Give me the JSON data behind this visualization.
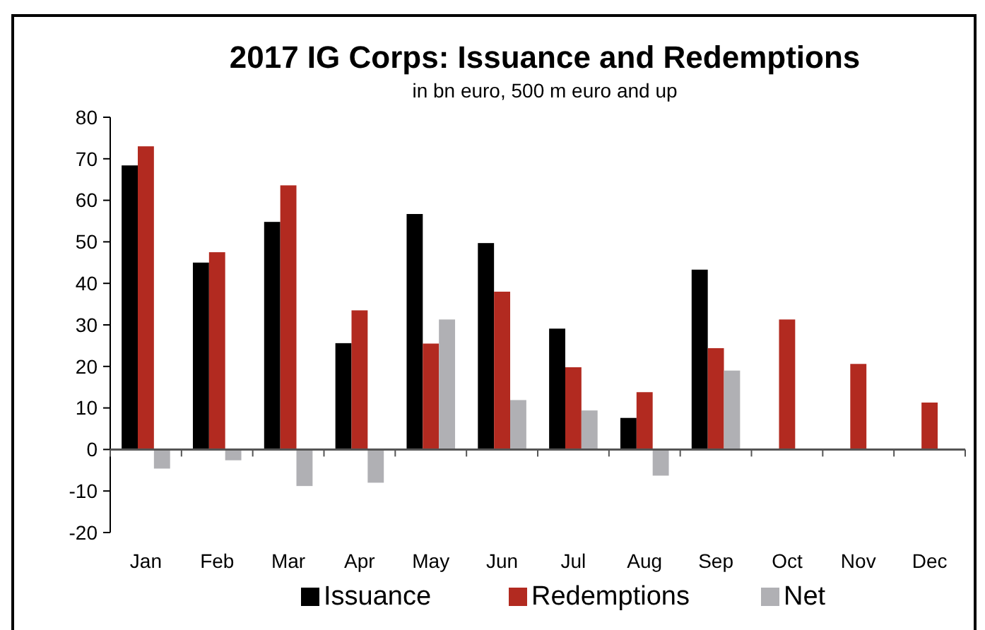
{
  "chart_data": {
    "type": "bar",
    "title": "2017 IG Corps: Issuance and Redemptions",
    "subtitle": "in bn euro, 500 m euro and up",
    "categories": [
      "Jan",
      "Feb",
      "Mar",
      "Apr",
      "May",
      "Jun",
      "Jul",
      "Aug",
      "Sep",
      "Oct",
      "Nov",
      "Dec"
    ],
    "series": [
      {
        "name": "Issuance",
        "color": "#000000",
        "values": [
          68.4,
          45,
          54.8,
          25.6,
          56.7,
          49.7,
          29.1,
          7.6,
          43.3,
          null,
          null,
          null
        ]
      },
      {
        "name": "Redemptions",
        "color": "#b22a20",
        "values": [
          73,
          47.5,
          63.6,
          33.5,
          25.5,
          38,
          19.8,
          13.8,
          24.4,
          31.3,
          20.6,
          11.3
        ]
      },
      {
        "name": "Net",
        "color": "#b0b0b4",
        "values": [
          -4.6,
          -2.6,
          -8.8,
          -8,
          31.3,
          11.9,
          9.4,
          -6.3,
          19,
          null,
          null,
          null
        ]
      }
    ],
    "ylim": [
      -20,
      80
    ],
    "yticks": [
      -20,
      -10,
      0,
      10,
      20,
      30,
      40,
      50,
      60,
      70,
      80
    ],
    "legend": "bottom"
  }
}
